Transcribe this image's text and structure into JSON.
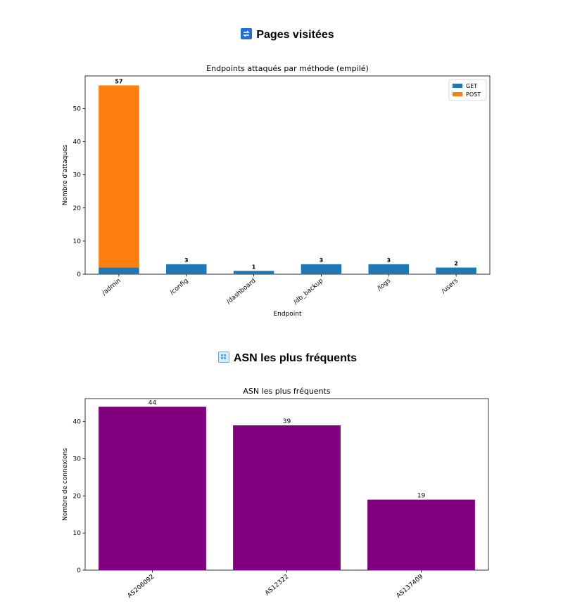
{
  "sections": [
    {
      "icon": "repeat-icon",
      "title": "Pages visitées"
    },
    {
      "icon": "grid-icon",
      "title": "ASN les plus fréquents"
    }
  ],
  "chart_data": [
    {
      "type": "bar",
      "stacked": true,
      "title": "Endpoints attaqués par méthode (empilé)",
      "xlabel": "Endpoint",
      "ylabel": "Nombre d'attaques",
      "categories": [
        "/admin",
        "/config",
        "/dashboard",
        "/db_backup",
        "/logs",
        "/users"
      ],
      "series": [
        {
          "name": "GET",
          "values": [
            2,
            3,
            1,
            3,
            3,
            2
          ],
          "color": "#1f77b4"
        },
        {
          "name": "POST",
          "values": [
            55,
            0,
            0,
            0,
            0,
            0
          ],
          "color": "#ff7f0e"
        }
      ],
      "totals": [
        57,
        3,
        1,
        3,
        3,
        2
      ],
      "ylim": [
        0,
        59.85
      ],
      "yticks": [
        0,
        10,
        20,
        30,
        40,
        50
      ],
      "legend": "top-right",
      "grid": false
    },
    {
      "type": "bar",
      "title": "ASN les plus fréquents",
      "xlabel": "",
      "ylabel": "Nombre de connexions",
      "categories": [
        "AS206092",
        "AS12322",
        "AS137409"
      ],
      "values": [
        44,
        39,
        19
      ],
      "color": "#800080",
      "ylim": [
        0,
        46.2
      ],
      "yticks": [
        0,
        10,
        20,
        30,
        40
      ],
      "grid": false
    }
  ]
}
